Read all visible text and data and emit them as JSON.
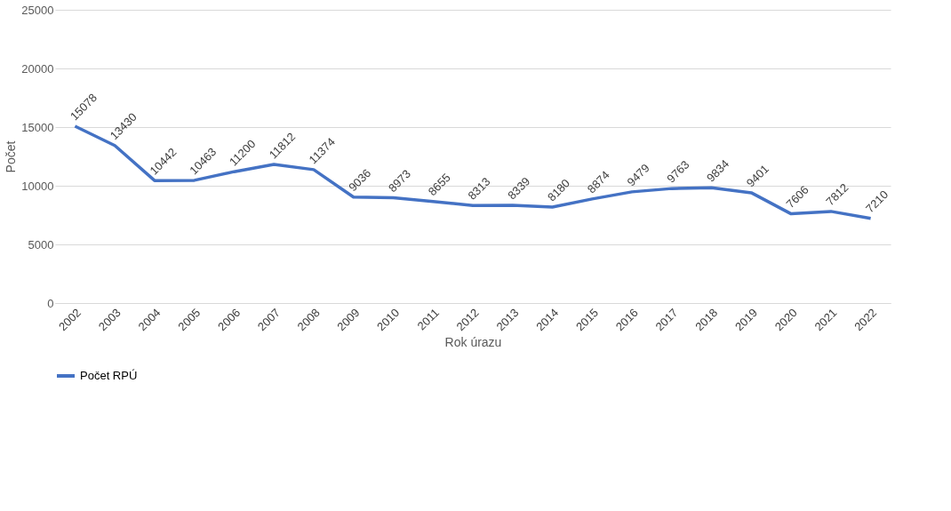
{
  "chart_data": {
    "type": "line",
    "xlabel": "Rok úrazu",
    "ylabel": "Počet",
    "categories": [
      "2002",
      "2003",
      "2004",
      "2005",
      "2006",
      "2007",
      "2008",
      "2009",
      "2010",
      "2011",
      "2012",
      "2013",
      "2014",
      "2015",
      "2016",
      "2017",
      "2018",
      "2019",
      "2020",
      "2021",
      "2022"
    ],
    "series": [
      {
        "name": "Počet RPÚ",
        "color": "#4472c4",
        "values": [
          15078,
          13430,
          10442,
          10463,
          11200,
          11812,
          11374,
          9036,
          8973,
          8655,
          8313,
          8339,
          8180,
          8874,
          9479,
          9763,
          9834,
          9401,
          7606,
          7812,
          7210
        ]
      }
    ],
    "ylim": [
      0,
      25000
    ],
    "yticks": [
      0,
      5000,
      10000,
      15000,
      20000,
      25000
    ],
    "grid": "y",
    "legend": "bottom",
    "data_labels": true,
    "marker": "none",
    "line_style": "solid"
  }
}
